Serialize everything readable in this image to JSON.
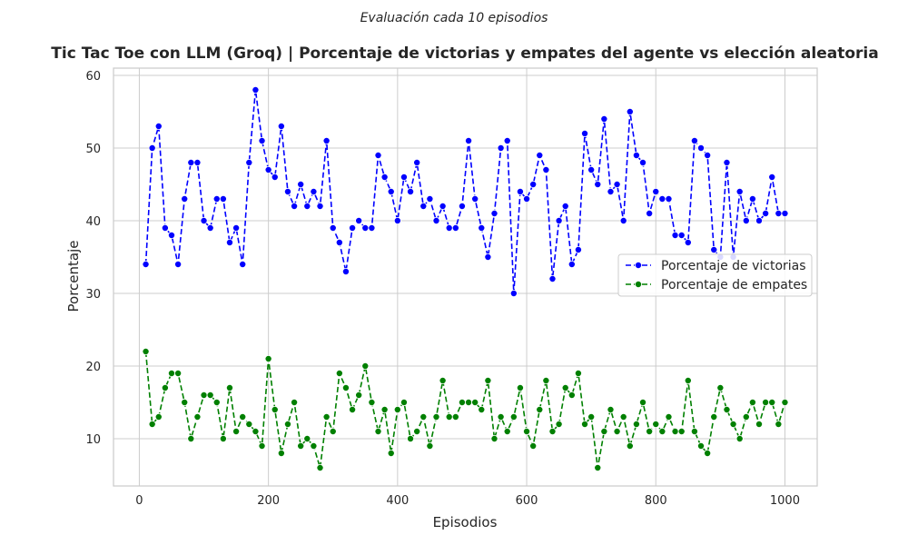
{
  "chart_data": {
    "type": "line",
    "subtitle": "Evaluación cada 10 episodios",
    "title": "Tic Tac Toe con LLM (Groq) | Porcentaje de victorias y empates del agente vs elección aleatoria",
    "xlabel": "Episodios",
    "ylabel": "Porcentaje",
    "xlim": [
      -40,
      1050
    ],
    "ylim": [
      3.5,
      61
    ],
    "x_ticks": [
      0,
      200,
      400,
      600,
      800,
      1000
    ],
    "y_ticks": [
      10,
      20,
      30,
      40,
      50,
      60
    ],
    "grid": true,
    "legend_position": "center-right",
    "x": [
      10,
      20,
      30,
      40,
      50,
      60,
      70,
      80,
      90,
      100,
      110,
      120,
      130,
      140,
      150,
      160,
      170,
      180,
      190,
      200,
      210,
      220,
      230,
      240,
      250,
      260,
      270,
      280,
      290,
      300,
      310,
      320,
      330,
      340,
      350,
      360,
      370,
      380,
      390,
      400,
      410,
      420,
      430,
      440,
      450,
      460,
      470,
      480,
      490,
      500,
      510,
      520,
      530,
      540,
      550,
      560,
      570,
      580,
      590,
      600,
      610,
      620,
      630,
      640,
      650,
      660,
      670,
      680,
      690,
      700,
      710,
      720,
      730,
      740,
      750,
      760,
      770,
      780,
      790,
      800,
      810,
      820,
      830,
      840,
      850,
      860,
      870,
      880,
      890,
      900,
      910,
      920,
      930,
      940,
      950,
      960,
      970,
      980,
      990,
      1000
    ],
    "series": [
      {
        "name": "Porcentaje de victorias",
        "color": "#0000ff",
        "values": [
          34,
          50,
          53,
          39,
          38,
          34,
          43,
          48,
          48,
          40,
          39,
          43,
          43,
          37,
          39,
          34,
          48,
          58,
          51,
          47,
          46,
          53,
          44,
          42,
          45,
          42,
          44,
          42,
          51,
          39,
          37,
          33,
          39,
          40,
          39,
          39,
          49,
          46,
          44,
          40,
          46,
          44,
          48,
          42,
          43,
          40,
          42,
          39,
          39,
          42,
          51,
          43,
          39,
          35,
          41,
          50,
          51,
          30,
          44,
          43,
          45,
          49,
          47,
          32,
          40,
          42,
          34,
          36,
          52,
          47,
          45,
          54,
          44,
          45,
          40,
          55,
          49,
          48,
          41,
          44,
          43,
          43,
          38,
          38,
          37,
          51,
          50,
          49,
          36,
          35,
          48,
          35,
          44,
          40,
          43,
          40,
          41,
          46,
          41,
          41
        ]
      },
      {
        "name": "Porcentaje de empates",
        "color": "#008000",
        "values": [
          22,
          12,
          13,
          17,
          19,
          19,
          15,
          10,
          13,
          16,
          16,
          15,
          10,
          17,
          11,
          13,
          12,
          11,
          9,
          21,
          14,
          8,
          12,
          15,
          9,
          10,
          9,
          6,
          13,
          11,
          19,
          17,
          14,
          16,
          20,
          15,
          11,
          14,
          8,
          14,
          15,
          10,
          11,
          13,
          9,
          13,
          18,
          13,
          13,
          15,
          15,
          15,
          14,
          18,
          10,
          13,
          11,
          13,
          17,
          11,
          9,
          14,
          18,
          11,
          12,
          17,
          16,
          19,
          12,
          13,
          6,
          11,
          14,
          11,
          13,
          9,
          12,
          15,
          11,
          12,
          11,
          13,
          11,
          11,
          18,
          11,
          9,
          8,
          13,
          17,
          14,
          12,
          10,
          13,
          15,
          12,
          15,
          15,
          12,
          15
        ]
      }
    ]
  }
}
